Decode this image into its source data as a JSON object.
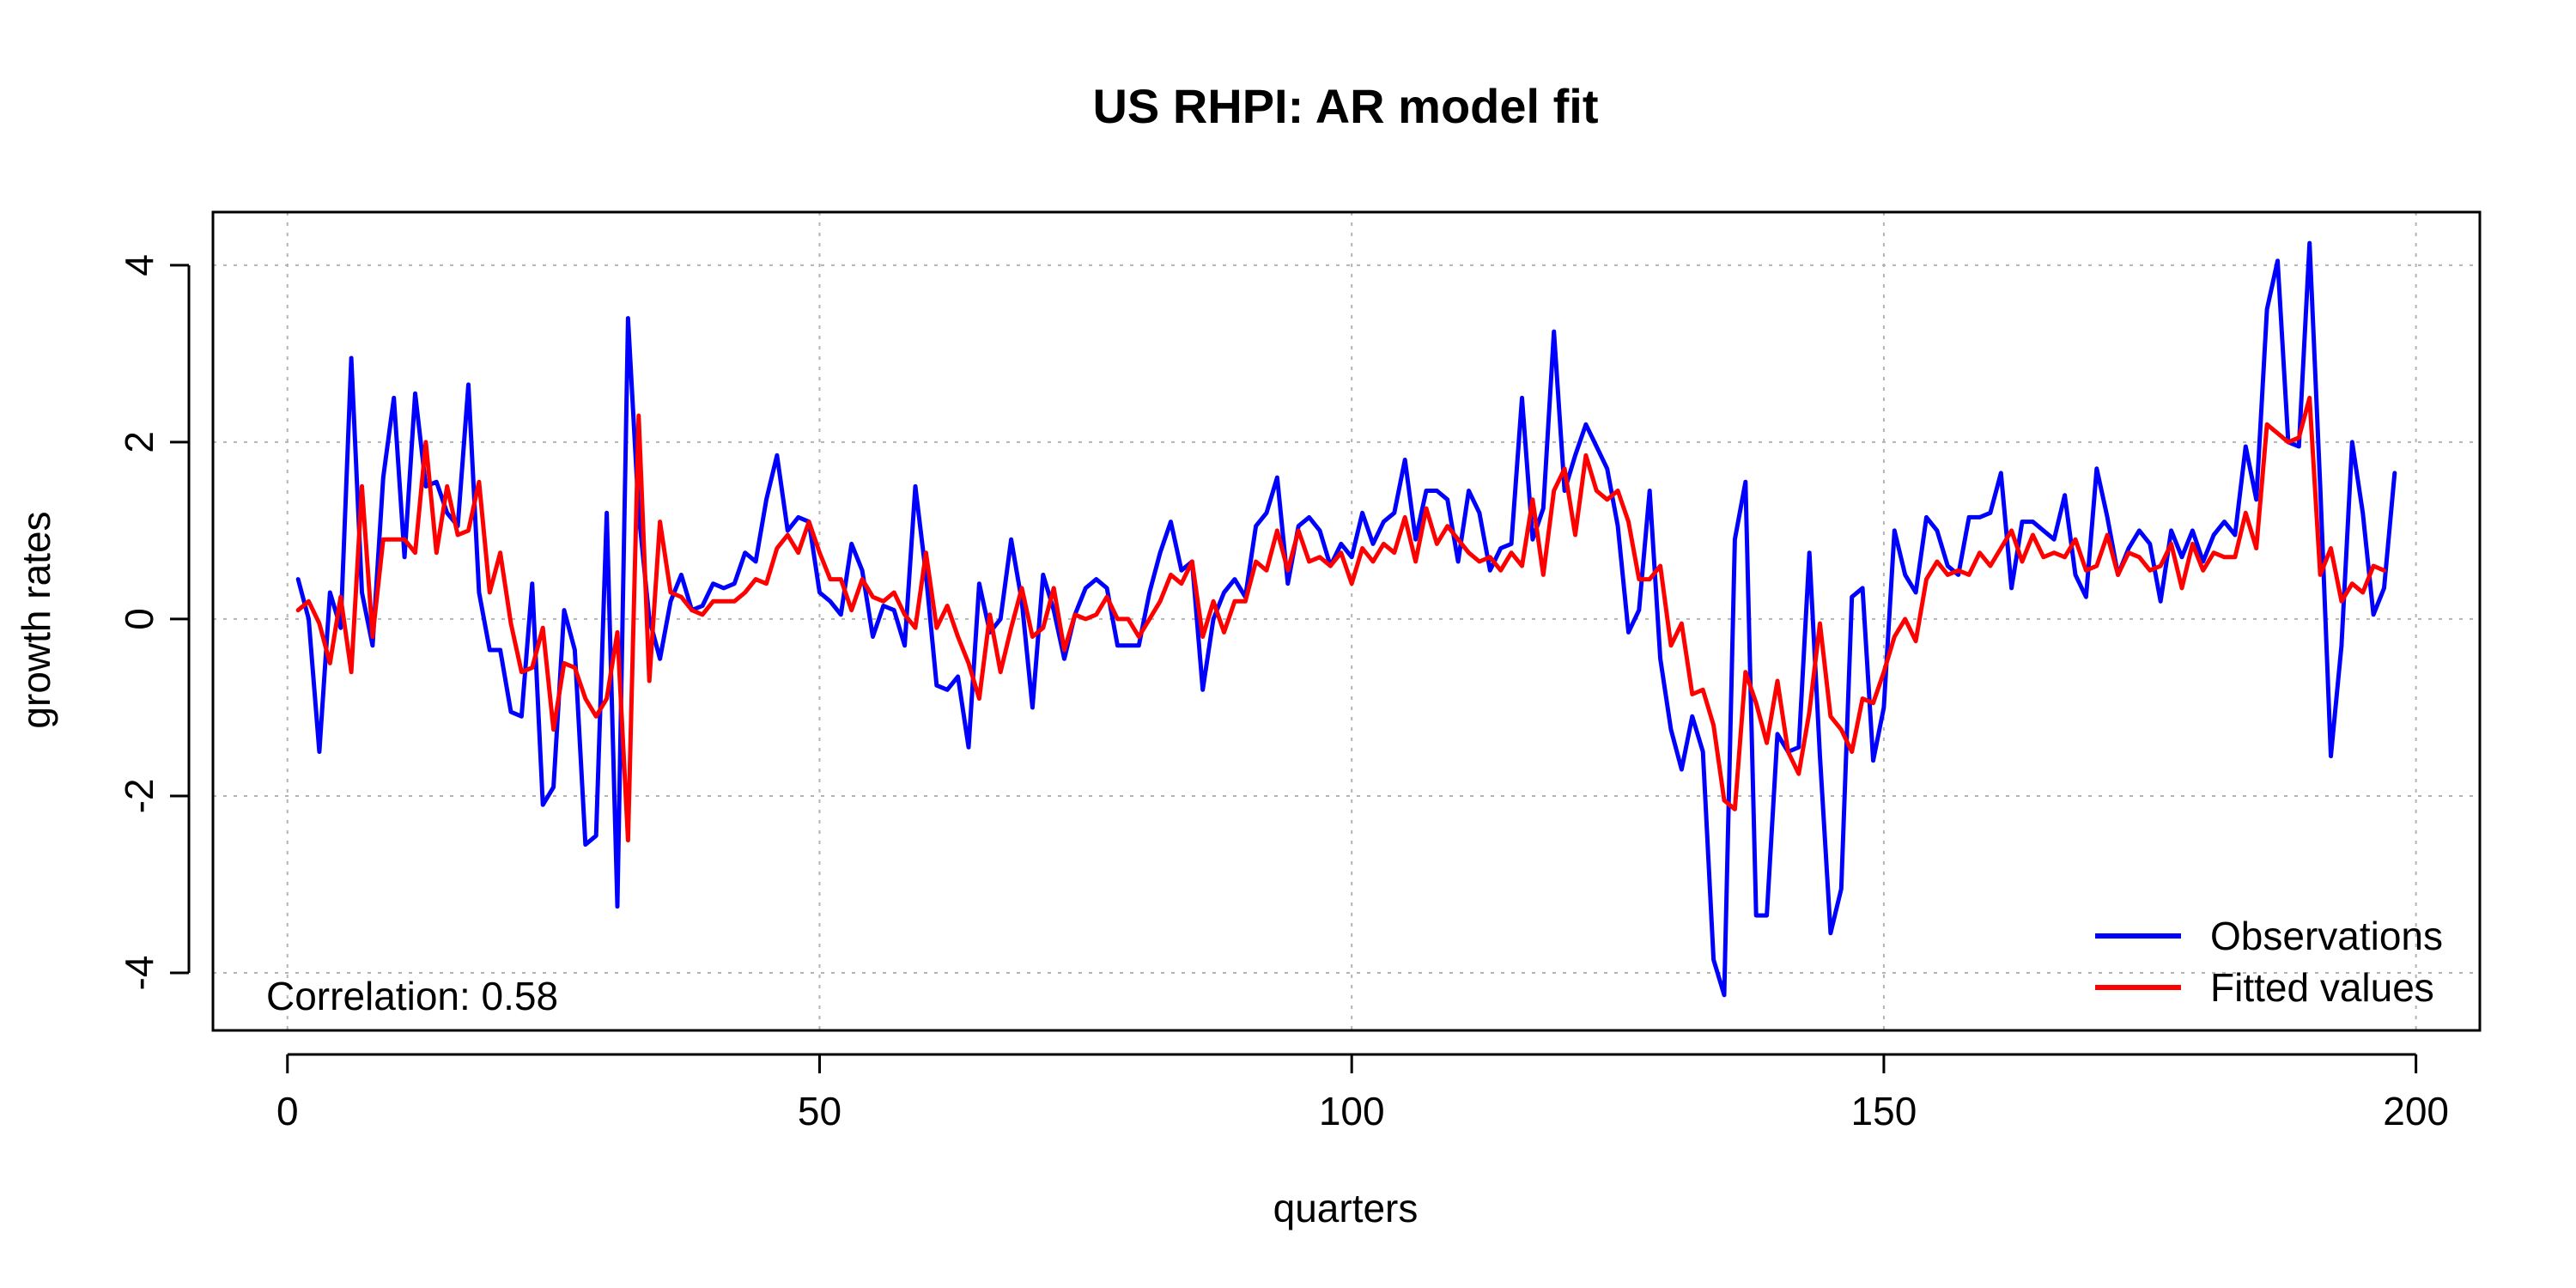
{
  "chart_data": {
    "type": "line",
    "title": "US RHPI: AR model fit",
    "xlabel": "quarters",
    "ylabel": "growth rates",
    "xlim": [
      -7,
      206
    ],
    "ylim": [
      -4.65,
      4.6
    ],
    "xticks": [
      0,
      50,
      100,
      150,
      200
    ],
    "yticks": [
      -4,
      -2,
      0,
      2,
      4
    ],
    "grid": true,
    "legend_position": "bottom-right",
    "annotation": "Correlation: 0.58",
    "series": [
      {
        "name": "Observations",
        "color": "#0000ff",
        "x_start": 1,
        "values": [
          0.45,
          0.0,
          -1.5,
          0.3,
          -0.1,
          2.95,
          0.3,
          -0.3,
          1.6,
          2.5,
          0.7,
          2.55,
          1.5,
          1.55,
          1.2,
          1.05,
          2.65,
          0.3,
          -0.35,
          -0.35,
          -1.05,
          -1.1,
          0.4,
          -2.1,
          -1.9,
          0.1,
          -0.35,
          -2.55,
          -2.45,
          1.2,
          -3.25,
          3.4,
          1.2,
          0.0,
          -0.45,
          0.2,
          0.5,
          0.1,
          0.15,
          0.4,
          0.35,
          0.4,
          0.75,
          0.65,
          1.35,
          1.85,
          1.0,
          1.15,
          1.1,
          0.3,
          0.2,
          0.05,
          0.85,
          0.55,
          -0.2,
          0.15,
          0.1,
          -0.3,
          1.5,
          0.5,
          -0.75,
          -0.8,
          -0.65,
          -1.45,
          0.4,
          -0.15,
          0.0,
          0.9,
          0.2,
          -1.0,
          0.5,
          0.1,
          -0.45,
          0.05,
          0.35,
          0.45,
          0.35,
          -0.3,
          -0.3,
          -0.3,
          0.3,
          0.75,
          1.1,
          0.55,
          0.65,
          -0.8,
          0.0,
          0.3,
          0.45,
          0.25,
          1.05,
          1.2,
          1.6,
          0.4,
          1.05,
          1.15,
          1.0,
          0.6,
          0.85,
          0.7,
          1.2,
          0.85,
          1.1,
          1.2,
          1.8,
          0.9,
          1.45,
          1.45,
          1.35,
          0.65,
          1.45,
          1.2,
          0.55,
          0.8,
          0.85,
          2.5,
          0.9,
          1.25,
          3.25,
          1.45,
          1.85,
          2.2,
          1.95,
          1.7,
          1.05,
          -0.15,
          0.1,
          1.45,
          -0.45,
          -1.25,
          -1.7,
          -1.1,
          -1.5,
          -3.85,
          -4.25,
          0.9,
          1.55,
          -3.35,
          -3.35,
          -1.3,
          -1.5,
          -1.45,
          0.75,
          -1.55,
          -3.55,
          -3.05,
          0.25,
          0.35,
          -1.6,
          -1.0,
          1.0,
          0.5,
          0.3,
          1.15,
          1.0,
          0.6,
          0.5,
          1.15,
          1.15,
          1.2,
          1.65,
          0.35,
          1.1,
          1.1,
          1.0,
          0.9,
          1.4,
          0.5,
          0.25,
          1.7,
          1.15,
          0.5,
          0.8,
          1.0,
          0.85,
          0.2,
          1.0,
          0.7,
          1.0,
          0.65,
          0.95,
          1.1,
          0.95,
          1.95,
          1.35,
          3.5,
          4.05,
          2.0,
          1.95,
          4.25,
          1.5,
          -1.55,
          -0.3,
          2.0,
          1.2,
          0.05,
          0.35,
          1.65
        ]
      },
      {
        "name": "Fitted values",
        "color": "#ff0000",
        "x_start": 1,
        "values": [
          0.1,
          0.2,
          -0.05,
          -0.5,
          0.25,
          -0.6,
          1.5,
          -0.2,
          0.9,
          0.9,
          0.9,
          0.75,
          2.0,
          0.75,
          1.5,
          0.95,
          1.0,
          1.55,
          0.3,
          0.75,
          -0.05,
          -0.6,
          -0.55,
          -0.1,
          -1.25,
          -0.5,
          -0.55,
          -0.9,
          -1.1,
          -0.9,
          -0.15,
          -2.5,
          2.3,
          -0.7,
          1.1,
          0.3,
          0.25,
          0.1,
          0.05,
          0.2,
          0.2,
          0.2,
          0.3,
          0.45,
          0.4,
          0.8,
          0.95,
          0.75,
          1.1,
          0.75,
          0.45,
          0.45,
          0.1,
          0.45,
          0.25,
          0.2,
          0.3,
          0.05,
          -0.1,
          0.75,
          -0.1,
          0.15,
          -0.2,
          -0.5,
          -0.9,
          0.05,
          -0.6,
          -0.1,
          0.35,
          -0.2,
          -0.1,
          0.35,
          -0.35,
          0.05,
          0.0,
          0.05,
          0.25,
          0.0,
          0.0,
          -0.2,
          0.0,
          0.2,
          0.5,
          0.4,
          0.65,
          -0.2,
          0.2,
          -0.15,
          0.2,
          0.2,
          0.65,
          0.55,
          1.0,
          0.55,
          1.0,
          0.65,
          0.7,
          0.6,
          0.75,
          0.4,
          0.8,
          0.65,
          0.85,
          0.75,
          1.15,
          0.65,
          1.25,
          0.85,
          1.05,
          0.9,
          0.75,
          0.65,
          0.7,
          0.55,
          0.75,
          0.6,
          1.35,
          0.5,
          1.45,
          1.7,
          0.95,
          1.85,
          1.45,
          1.35,
          1.45,
          1.1,
          0.45,
          0.45,
          0.6,
          -0.3,
          -0.05,
          -0.85,
          -0.8,
          -1.2,
          -2.05,
          -2.15,
          -0.6,
          -0.95,
          -1.4,
          -0.7,
          -1.5,
          -1.75,
          -1.05,
          -0.05,
          -1.1,
          -1.25,
          -1.5,
          -0.9,
          -0.95,
          -0.6,
          -0.2,
          0.0,
          -0.25,
          0.45,
          0.65,
          0.5,
          0.55,
          0.5,
          0.75,
          0.6,
          0.8,
          1.0,
          0.65,
          0.95,
          0.7,
          0.75,
          0.7,
          0.9,
          0.55,
          0.6,
          0.95,
          0.5,
          0.75,
          0.7,
          0.55,
          0.6,
          0.85,
          0.35,
          0.85,
          0.55,
          0.75,
          0.7,
          0.7,
          1.2,
          0.8,
          2.2,
          2.1,
          2.0,
          2.05,
          2.5,
          0.5,
          0.8,
          0.2,
          0.4,
          0.3,
          0.6,
          0.55
        ]
      }
    ]
  }
}
